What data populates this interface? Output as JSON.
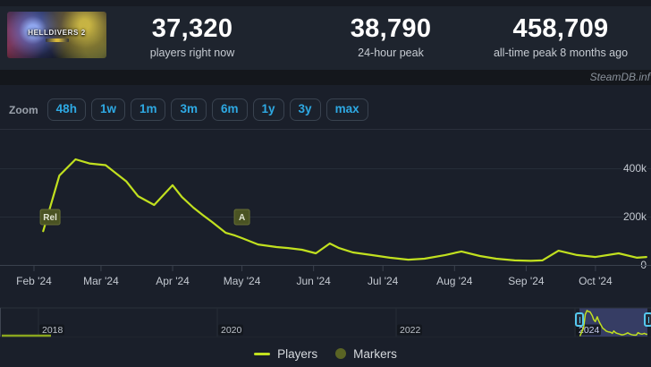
{
  "header": {
    "banner_alt": "HELLDIVERS 2",
    "stats": [
      {
        "value": "37,320",
        "label": "players right now"
      },
      {
        "value": "38,790",
        "label": "24-hour peak"
      },
      {
        "value": "458,709",
        "label": "all-time peak 8 months ago"
      }
    ]
  },
  "watermark": "SteamDB.inf",
  "zoom": {
    "label": "Zoom",
    "options": [
      "48h",
      "1w",
      "1m",
      "3m",
      "6m",
      "1y",
      "3y",
      "max"
    ],
    "accent_color": "#2ea9e3"
  },
  "legend": [
    {
      "name": "Players",
      "type": "line",
      "color": "#c1e01f"
    },
    {
      "name": "Markers",
      "type": "dot",
      "color": "#5a6424"
    }
  ],
  "chart_data": {
    "type": "line",
    "title": "",
    "xlabel": "",
    "ylabel": "Players",
    "grid": true,
    "line_color": "#c1e01f",
    "x_range": [
      "2024-01-21",
      "2024-10-26"
    ],
    "y_range": [
      0,
      520000
    ],
    "y_ticks": [
      {
        "value": 400000,
        "label": "400k"
      },
      {
        "value": 200000,
        "label": "200k"
      },
      {
        "value": 0,
        "label": "0"
      }
    ],
    "x_ticks": [
      {
        "date": "2024-02-01",
        "label": "Feb '24"
      },
      {
        "date": "2024-03-01",
        "label": "Mar '24"
      },
      {
        "date": "2024-04-01",
        "label": "Apr '24"
      },
      {
        "date": "2024-05-01",
        "label": "May '24"
      },
      {
        "date": "2024-06-01",
        "label": "Jun '24"
      },
      {
        "date": "2024-07-01",
        "label": "Jul '24"
      },
      {
        "date": "2024-08-01",
        "label": "Aug '24"
      },
      {
        "date": "2024-09-01",
        "label": "Sep '24"
      },
      {
        "date": "2024-10-01",
        "label": "Oct '24"
      }
    ],
    "series": [
      {
        "name": "Players",
        "points": [
          [
            "2024-02-05",
            140000
          ],
          [
            "2024-02-12",
            370000
          ],
          [
            "2024-02-19",
            437000
          ],
          [
            "2024-02-25",
            420000
          ],
          [
            "2024-03-03",
            413000
          ],
          [
            "2024-03-12",
            345000
          ],
          [
            "2024-03-17",
            285000
          ],
          [
            "2024-03-24",
            248000
          ],
          [
            "2024-04-01",
            330000
          ],
          [
            "2024-04-05",
            281000
          ],
          [
            "2024-04-10",
            237000
          ],
          [
            "2024-04-14",
            207000
          ],
          [
            "2024-04-18",
            178000
          ],
          [
            "2024-04-24",
            133000
          ],
          [
            "2024-04-28",
            122000
          ],
          [
            "2024-05-01",
            111000
          ],
          [
            "2024-05-08",
            85000
          ],
          [
            "2024-05-16",
            74000
          ],
          [
            "2024-05-21",
            70000
          ],
          [
            "2024-05-27",
            63000
          ],
          [
            "2024-06-02",
            48000
          ],
          [
            "2024-06-08",
            89000
          ],
          [
            "2024-06-12",
            70000
          ],
          [
            "2024-06-18",
            52000
          ],
          [
            "2024-06-26",
            41000
          ],
          [
            "2024-07-04",
            30000
          ],
          [
            "2024-07-12",
            22000
          ],
          [
            "2024-07-19",
            26000
          ],
          [
            "2024-07-28",
            41000
          ],
          [
            "2024-08-04",
            56000
          ],
          [
            "2024-08-12",
            37000
          ],
          [
            "2024-08-19",
            26000
          ],
          [
            "2024-08-27",
            19000
          ],
          [
            "2024-09-03",
            17000
          ],
          [
            "2024-09-08",
            19000
          ],
          [
            "2024-09-15",
            59000
          ],
          [
            "2024-09-23",
            41000
          ],
          [
            "2024-10-01",
            33000
          ],
          [
            "2024-10-11",
            48000
          ],
          [
            "2024-10-19",
            30000
          ],
          [
            "2024-10-23",
            33000
          ]
        ]
      }
    ],
    "markers": [
      {
        "label": "Rel",
        "date": "2024-02-08"
      },
      {
        "label": "A",
        "date": "2024-05-01"
      }
    ],
    "navigator": {
      "years": [
        {
          "label": "2018"
        },
        {
          "label": "2020"
        },
        {
          "label": "2022"
        },
        {
          "label": "2024"
        }
      ],
      "selection": [
        "2024-01-21",
        "2024-10-26"
      ],
      "max_value": 458709
    }
  }
}
